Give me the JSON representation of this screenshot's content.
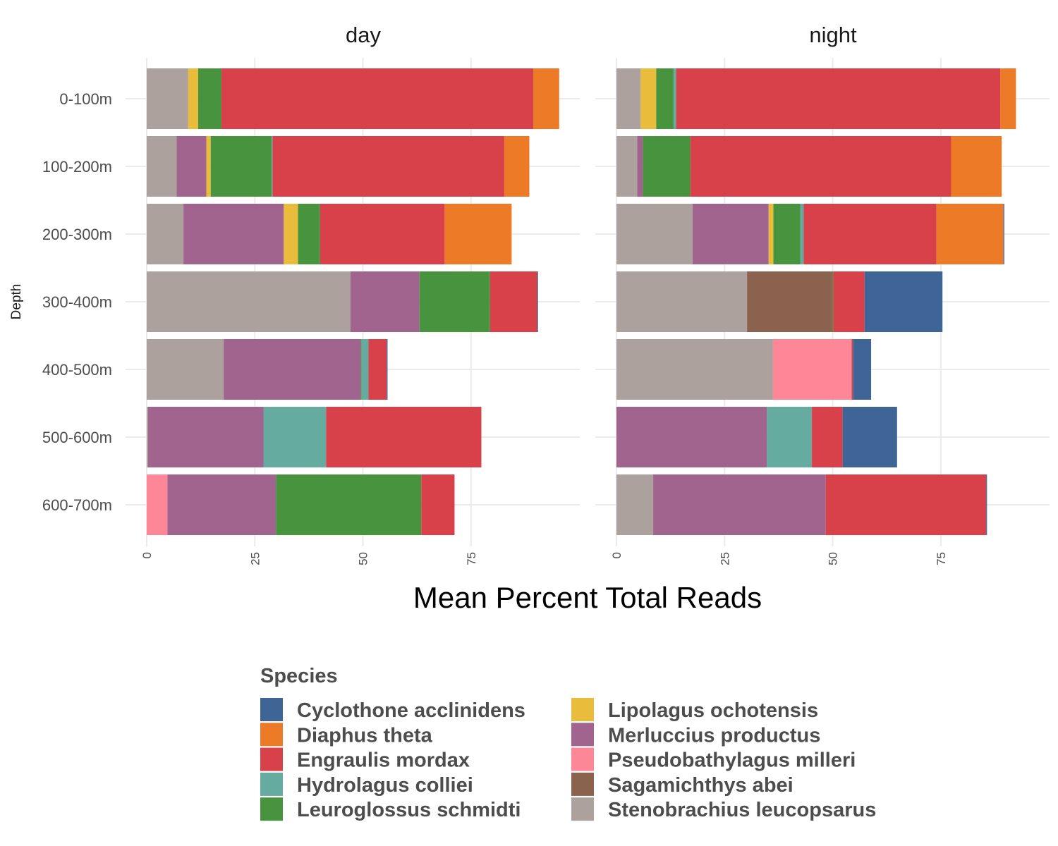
{
  "chart_data": {
    "type": "bar",
    "orientation": "horizontal",
    "stacked": true,
    "xlabel": "Mean Percent Total Reads",
    "ylabel": "Depth",
    "xlim": [
      0,
      100
    ],
    "x_ticks": [
      0,
      25,
      50,
      75
    ],
    "x_tick_labels": [
      "0",
      "25",
      "50",
      "75"
    ],
    "grid": true,
    "legend_position": "bottom",
    "legend_title": "Species",
    "categories": [
      "0-100m",
      "100-200m",
      "200-300m",
      "300-400m",
      "400-500m",
      "500-600m",
      "600-700m"
    ],
    "species": [
      {
        "name": "Cyclothone acclinidens",
        "color": "#3e6596"
      },
      {
        "name": "Diaphus theta",
        "color": "#ec7a26"
      },
      {
        "name": "Engraulis mordax",
        "color": "#d8404a"
      },
      {
        "name": "Hydrolagus colliei",
        "color": "#66aba0"
      },
      {
        "name": "Leuroglossus schmidti",
        "color": "#48943e"
      },
      {
        "name": "Lipolagus ochotensis",
        "color": "#e9bd3b"
      },
      {
        "name": "Merluccius productus",
        "color": "#a0648e"
      },
      {
        "name": "Pseudobathylagus milleri",
        "color": "#fd8797"
      },
      {
        "name": "Sagamichthys abei",
        "color": "#8b624e"
      },
      {
        "name": "Stenobrachius leucopsarus",
        "color": "#aca19c"
      }
    ],
    "stack_order": [
      "Stenobrachius leucopsarus",
      "Sagamichthys abei",
      "Pseudobathylagus milleri",
      "Merluccius productus",
      "Lipolagus ochotensis",
      "Leuroglossus schmidti",
      "Hydrolagus colliei",
      "Engraulis mordax",
      "Diaphus theta",
      "Cyclothone acclinidens"
    ],
    "facets": [
      {
        "title": "day",
        "values": {
          "0-100m": {
            "Stenobrachius leucopsarus": 9.6,
            "Lipolagus ochotensis": 2.3,
            "Leuroglossus schmidti": 5.4,
            "Engraulis mordax": 72.1,
            "Diaphus theta": 6.0
          },
          "100-200m": {
            "Stenobrachius leucopsarus": 6.9,
            "Merluccius productus": 6.9,
            "Lipolagus ochotensis": 1.0,
            "Leuroglossus schmidti": 14.1,
            "Hydrolagus colliei": 0.2,
            "Engraulis mordax": 53.6,
            "Diaphus theta": 5.8
          },
          "200-300m": {
            "Stenobrachius leucopsarus": 8.5,
            "Merluccius productus": 23.2,
            "Lipolagus ochotensis": 3.3,
            "Leuroglossus schmidti": 5.1,
            "Engraulis mordax": 28.8,
            "Diaphus theta": 15.5
          },
          "300-400m": {
            "Stenobrachius leucopsarus": 47.1,
            "Merluccius productus": 16.0,
            "Leuroglossus schmidti": 16.3,
            "Engraulis mordax": 10.9,
            "Cyclothone acclinidens": 0.2
          },
          "400-500m": {
            "Stenobrachius leucopsarus": 17.8,
            "Merluccius productus": 31.7,
            "Leuroglossus schmidti": 0.2,
            "Hydrolagus colliei": 1.6,
            "Engraulis mordax": 4.2,
            "Cyclothone acclinidens": 0.2
          },
          "500-600m": {
            "Stenobrachius leucopsarus": 0.3,
            "Merluccius productus": 26.7,
            "Hydrolagus colliei": 14.5,
            "Engraulis mordax": 35.9
          },
          "600-700m": {
            "Pseudobathylagus milleri": 4.8,
            "Merluccius productus": 25.1,
            "Leuroglossus schmidti": 33.6,
            "Engraulis mordax": 7.7
          }
        }
      },
      {
        "title": "night",
        "values": {
          "0-100m": {
            "Stenobrachius leucopsarus": 5.6,
            "Lipolagus ochotensis": 3.6,
            "Leuroglossus schmidti": 4.0,
            "Hydrolagus colliei": 0.6,
            "Engraulis mordax": 75.0,
            "Diaphus theta": 3.6
          },
          "100-200m": {
            "Stenobrachius leucopsarus": 4.8,
            "Merluccius productus": 1.3,
            "Leuroglossus schmidti": 11.0,
            "Engraulis mordax": 60.3,
            "Diaphus theta": 11.7
          },
          "200-300m": {
            "Stenobrachius leucopsarus": 17.6,
            "Merluccius productus": 17.6,
            "Lipolagus ochotensis": 1.1,
            "Leuroglossus schmidti": 6.2,
            "Hydrolagus colliei": 0.8,
            "Engraulis mordax": 30.7,
            "Diaphus theta": 15.5,
            "Cyclothone acclinidens": 0.2
          },
          "300-400m": {
            "Stenobrachius leucopsarus": 30.2,
            "Sagamichthys abei": 19.7,
            "Leuroglossus schmidti": 0.2,
            "Engraulis mordax": 7.3,
            "Cyclothone acclinidens": 18.0
          },
          "400-500m": {
            "Stenobrachius leucopsarus": 36.2,
            "Pseudobathylagus milleri": 18.2,
            "Engraulis mordax": 0.3,
            "Cyclothone acclinidens": 4.2
          },
          "500-600m": {
            "Merluccius productus": 34.8,
            "Hydrolagus colliei": 10.4,
            "Engraulis mordax": 7.1,
            "Cyclothone acclinidens": 12.6
          },
          "600-700m": {
            "Stenobrachius leucopsarus": 8.5,
            "Merluccius productus": 39.9,
            "Engraulis mordax": 37.1,
            "Cyclothone acclinidens": 0.2
          }
        }
      }
    ]
  }
}
